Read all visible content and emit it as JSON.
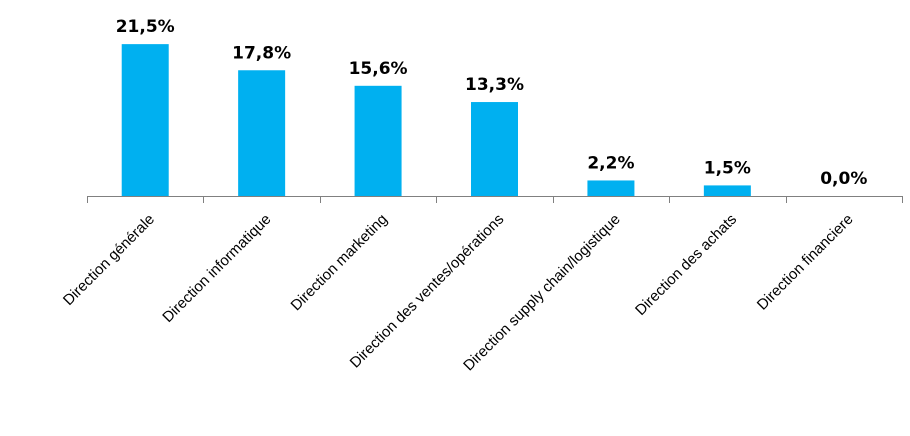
{
  "chart_data": {
    "type": "bar",
    "title": "",
    "xlabel": "",
    "ylabel": "",
    "ylim": [
      0,
      23.5
    ],
    "grid": false,
    "legend": "none",
    "bar_color": "#00B0F0",
    "categories": [
      "Direction générale",
      "Direction informatique",
      "Direction marketing",
      "Direction des ventes/opérations",
      "Direction supply chain/logistique",
      "Direction des achats",
      "Direction financiere"
    ],
    "values": [
      21.5,
      17.8,
      15.6,
      13.3,
      2.2,
      1.5,
      0.0
    ],
    "value_labels": [
      "21,5%",
      "17,8%",
      "15,6%",
      "13,3%",
      "2,2%",
      "1,5%",
      "0,0%"
    ]
  }
}
